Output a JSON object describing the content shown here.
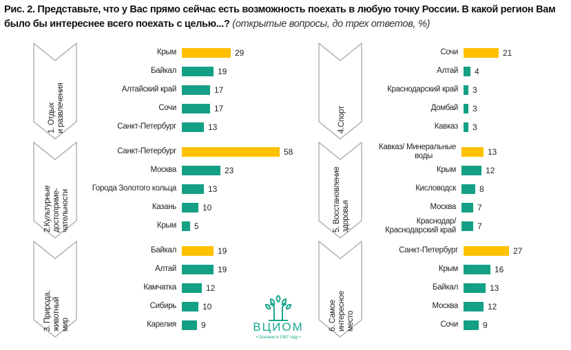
{
  "title": {
    "main": "Рис. 2. Представьте, что у Вас прямо сейчас есть возможность поехать в любую точку России. В какой регион Вам было бы интереснее всего поехать с целью...?",
    "subtitle": "(открытые вопросы, до трех ответов, %)"
  },
  "colors": {
    "highlight": "#ffc000",
    "bar": "#13a085",
    "chevron_stroke": "#b3b3b3"
  },
  "logo": {
    "name": "ВЦИОМ",
    "tagline": "• Основан в 1987 году •"
  },
  "chart_data": [
    {
      "type": "bar",
      "orientation": "horizontal",
      "title": "1. Отдых и развлечения",
      "title_lines": [
        "1. Отдых",
        "и развлечения"
      ],
      "categories": [
        "Крым",
        "Байкал",
        "Алтайский край",
        "Сочи",
        "Санкт-Петербург"
      ],
      "values": [
        29,
        19,
        17,
        17,
        13
      ],
      "highlight_index": 0,
      "unit": "%"
    },
    {
      "type": "bar",
      "orientation": "horizontal",
      "title": "2. Культурные достопримечательности",
      "title_lines": [
        "2.Культурные",
        "достоприме-",
        "чательности"
      ],
      "categories": [
        "Санкт-Петербург",
        "Москва",
        "Города Золотого кольца",
        "Казань",
        "Крым"
      ],
      "values": [
        58,
        23,
        13,
        10,
        5
      ],
      "highlight_index": 0,
      "unit": "%"
    },
    {
      "type": "bar",
      "orientation": "horizontal",
      "title": "3. Природа, животный мир",
      "title_lines": [
        "3. Природа,",
        "животный",
        "мир"
      ],
      "categories": [
        "Байкал",
        "Алтай",
        "Камчатка",
        "Сибирь",
        "Карелия"
      ],
      "values": [
        19,
        19,
        12,
        10,
        9
      ],
      "highlight_index": 0,
      "unit": "%"
    },
    {
      "type": "bar",
      "orientation": "horizontal",
      "title": "4. Спорт",
      "title_lines": [
        "4.Спорт"
      ],
      "categories": [
        "Сочи",
        "Алтай",
        "Краснодарский край",
        "Домбай",
        "Кавказ"
      ],
      "values": [
        21,
        4,
        3,
        3,
        3
      ],
      "highlight_index": 0,
      "unit": "%"
    },
    {
      "type": "bar",
      "orientation": "horizontal",
      "title": "5. Восстановление здоровья",
      "title_lines": [
        "5. Восстановление",
        "здоровья"
      ],
      "categories": [
        "Кавказ/ Минеральные воды",
        "Крым",
        "Кисловодск",
        "Москва",
        "Краснодар/ Краснодарский край"
      ],
      "category_lines": [
        [
          "Кавказ/ Минеральные",
          "воды"
        ],
        [
          "Крым"
        ],
        [
          "Кисловодск"
        ],
        [
          "Москва"
        ],
        [
          "Краснодар/",
          "Краснодарский край"
        ]
      ],
      "values": [
        13,
        12,
        8,
        7,
        7
      ],
      "highlight_index": 0,
      "unit": "%"
    },
    {
      "type": "bar",
      "orientation": "horizontal",
      "title": "6. Самое интересное место",
      "title_lines": [
        "6. Самое",
        "интересное",
        "место"
      ],
      "categories": [
        "Санкт-Петербург",
        "Крым",
        "Байкал",
        "Москва",
        "Сочи"
      ],
      "values": [
        27,
        16,
        13,
        12,
        9
      ],
      "highlight_index": 0,
      "unit": "%"
    }
  ]
}
